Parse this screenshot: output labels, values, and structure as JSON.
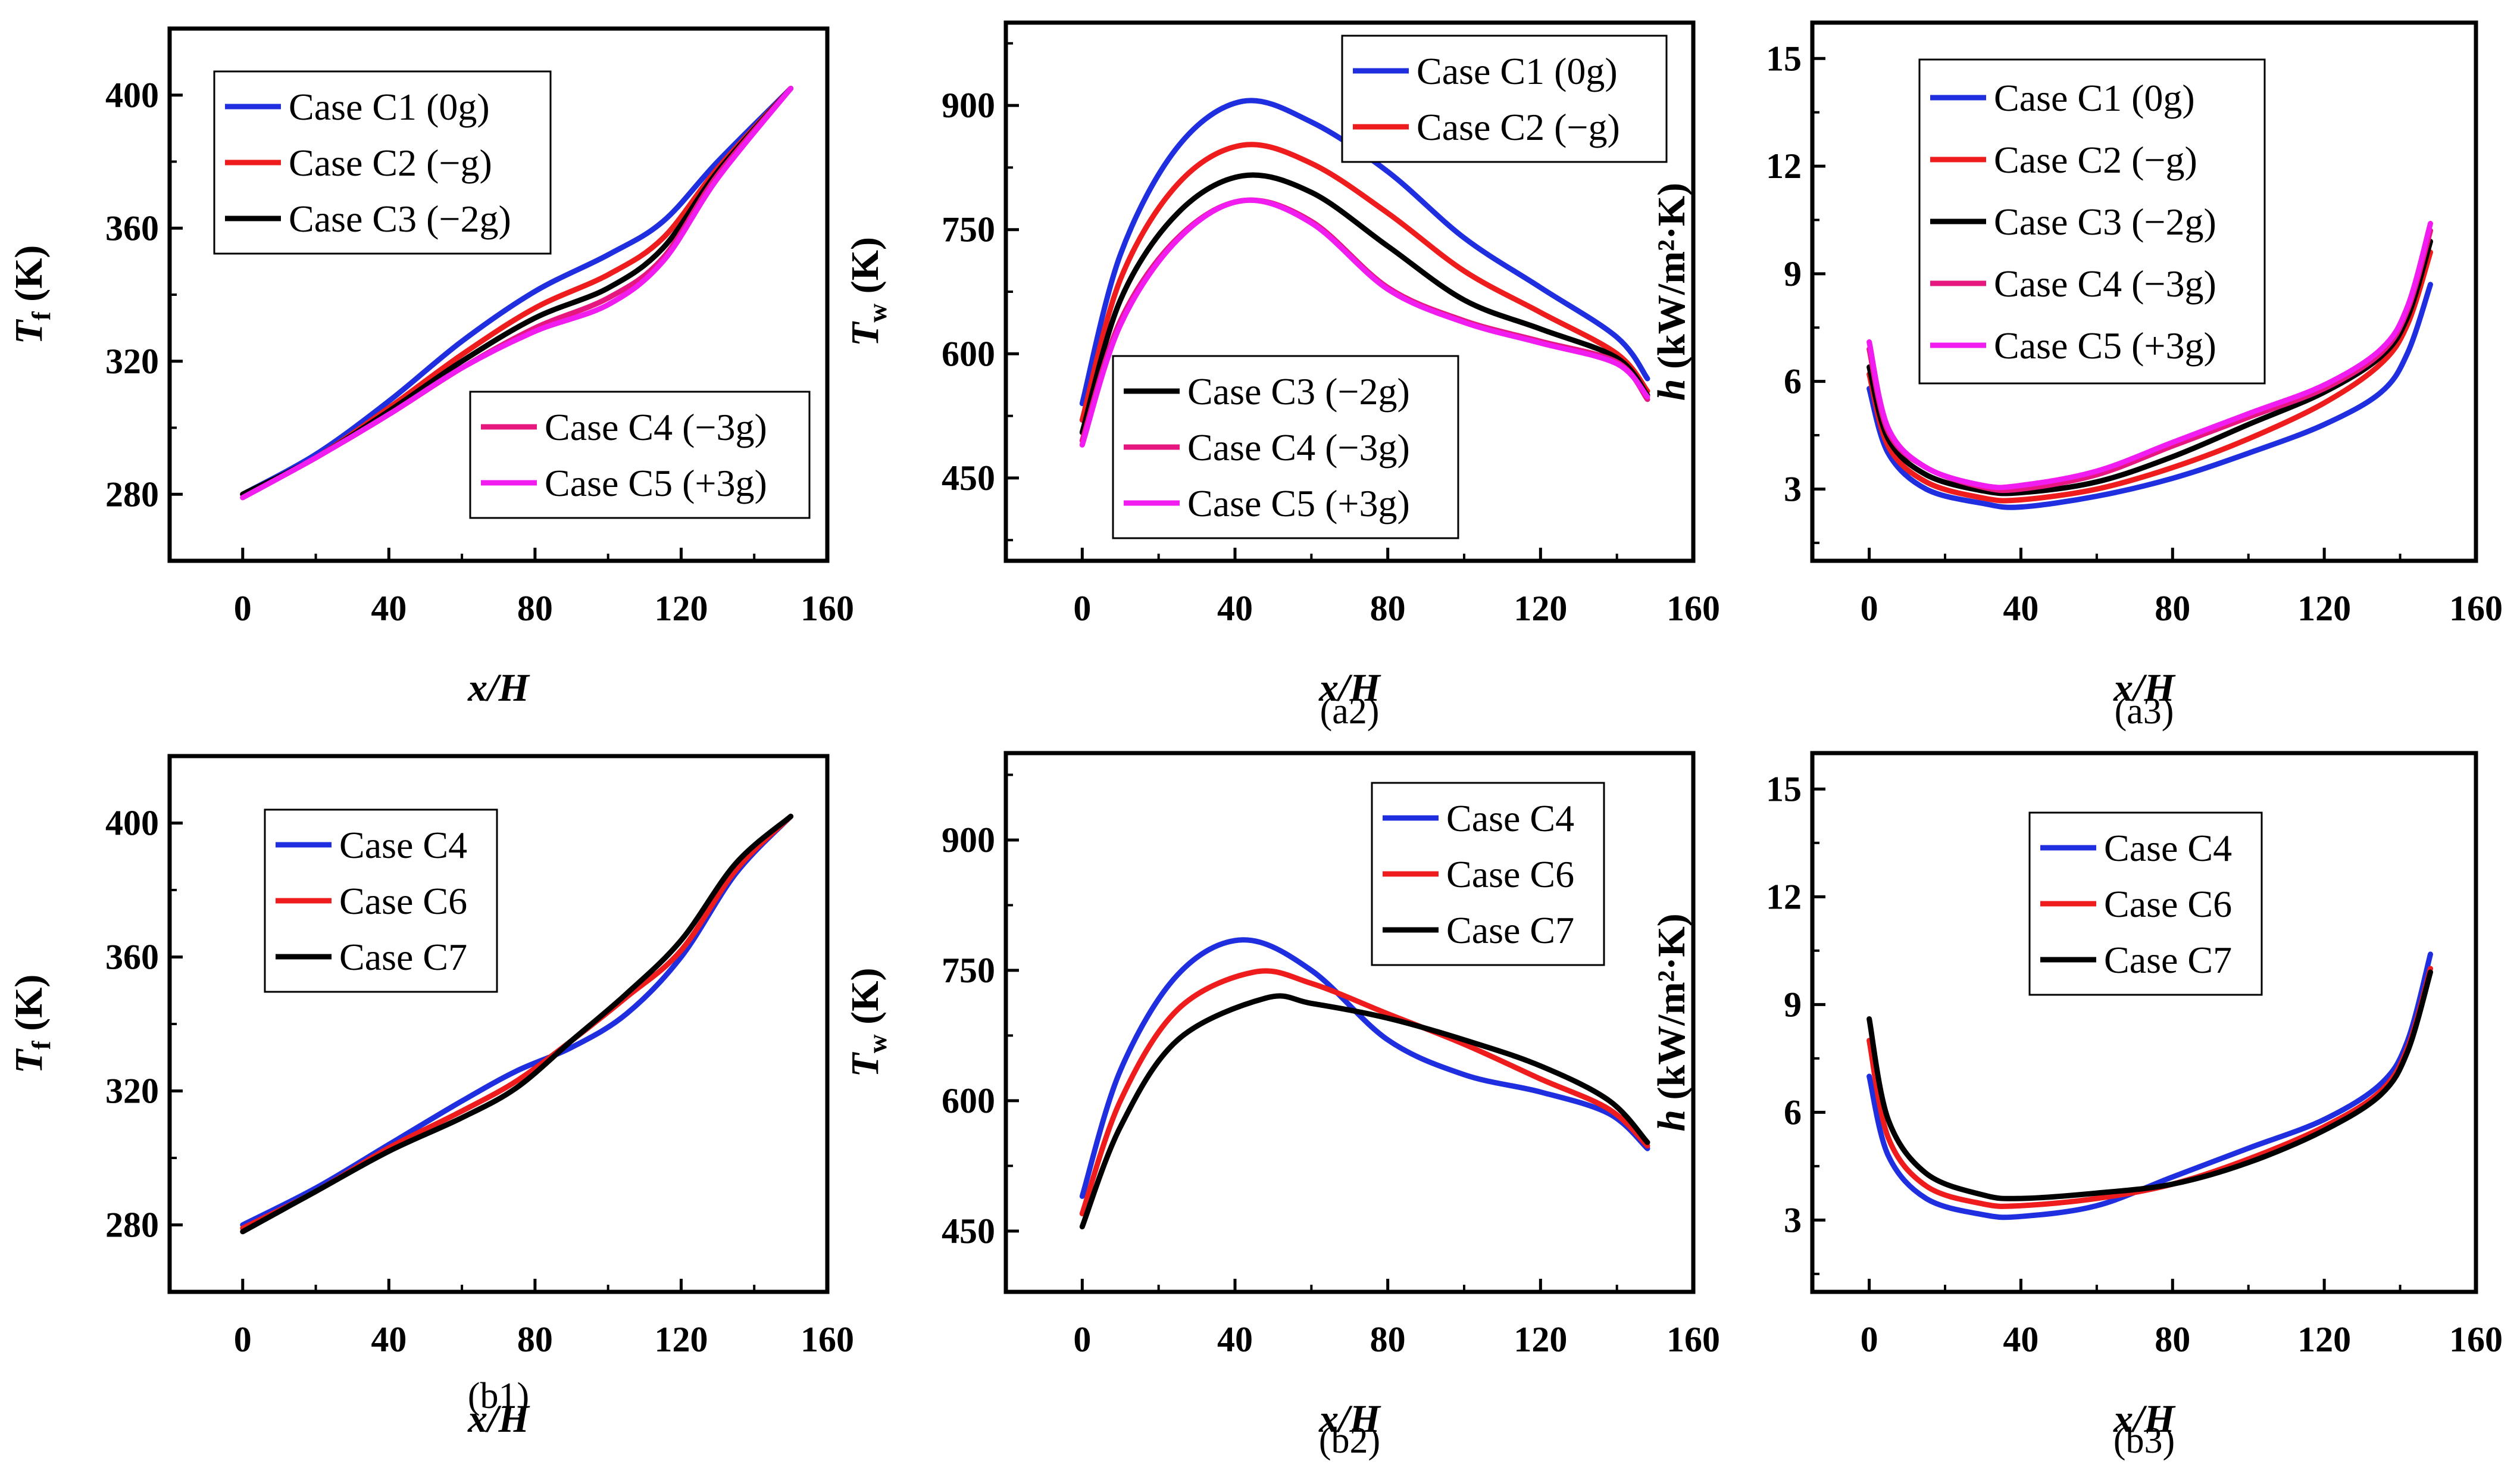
{
  "colors": {
    "C1": "#1f2fe0",
    "C2": "#ee1c1c",
    "C3": "#000000",
    "C4": "#e6177e",
    "C5": "#f01cf0",
    "b_C4": "#1f2fe0",
    "b_C6": "#ee1c1c",
    "b_C7": "#000000"
  },
  "chart_data": [
    {
      "id": "a1",
      "type": "line",
      "panel_label": "",
      "xlabel": "x/H",
      "ylabel_main": "T",
      "ylabel_sub": "f",
      "ylabel_unit": "(K)",
      "xlim": [
        -20,
        160
      ],
      "ylim": [
        260,
        420
      ],
      "xticks": [
        "0",
        "40",
        "80",
        "120",
        "160"
      ],
      "yticks": [
        "280",
        "320",
        "360",
        "400"
      ],
      "xtick_values": [
        0,
        40,
        80,
        120,
        160
      ],
      "ytick_values": [
        280,
        320,
        360,
        400
      ],
      "legends": [
        {
          "position": "top-left",
          "entries": [
            {
              "label": "Case C1 (0g)",
              "color_key": "C1"
            },
            {
              "label": "Case C2 (−g)",
              "color_key": "C2"
            },
            {
              "label": "Case C3 (−2g)",
              "color_key": "C3"
            }
          ]
        },
        {
          "position": "bottom-right",
          "entries": [
            {
              "label": "Case C4 (−3g)",
              "color_key": "C4"
            },
            {
              "label": "Case C5 (+3g)",
              "color_key": "C5"
            }
          ]
        }
      ],
      "series": [
        {
          "name": "Case C1 (0g)",
          "color_key": "C1",
          "x": [
            0,
            20,
            40,
            60,
            80,
            100,
            115,
            130,
            150
          ],
          "y": [
            280,
            292,
            308,
            326,
            341,
            352,
            362,
            380,
            402
          ]
        },
        {
          "name": "Case C2 (−g)",
          "color_key": "C2",
          "x": [
            0,
            20,
            40,
            60,
            80,
            100,
            115,
            130,
            150
          ],
          "y": [
            280,
            291,
            306,
            322,
            336,
            346,
            357,
            378,
            402
          ]
        },
        {
          "name": "Case C3 (−2g)",
          "color_key": "C3",
          "x": [
            0,
            20,
            40,
            60,
            80,
            100,
            115,
            130,
            150
          ],
          "y": [
            280,
            291,
            305,
            320,
            333,
            342,
            354,
            377,
            402
          ]
        },
        {
          "name": "Case C4 (−3g)",
          "color_key": "C4",
          "x": [
            0,
            20,
            40,
            60,
            80,
            100,
            115,
            130,
            150
          ],
          "y": [
            279,
            291,
            304,
            318,
            330,
            339,
            351,
            376,
            402
          ]
        },
        {
          "name": "Case C5 (+3g)",
          "color_key": "C5",
          "x": [
            0,
            20,
            40,
            60,
            80,
            100,
            115,
            130,
            150
          ],
          "y": [
            279,
            291,
            304,
            318,
            329,
            337,
            350,
            375,
            402
          ]
        }
      ]
    },
    {
      "id": "a2",
      "type": "line",
      "panel_label": "(a2)",
      "xlabel": "x/H",
      "ylabel_main": "T",
      "ylabel_sub": "w",
      "ylabel_unit": "(K)",
      "xlim": [
        -20,
        160
      ],
      "ylim": [
        350,
        1000
      ],
      "xticks": [
        "0",
        "40",
        "80",
        "120",
        "160"
      ],
      "yticks": [
        "450",
        "600",
        "750",
        "900"
      ],
      "xtick_values": [
        0,
        40,
        80,
        120,
        160
      ],
      "ytick_values": [
        450,
        600,
        750,
        900
      ],
      "legends": [
        {
          "position": "top-right",
          "entries": [
            {
              "label": "Case C1 (0g)",
              "color_key": "C1"
            },
            {
              "label": "Case C2 (−g)",
              "color_key": "C2"
            }
          ]
        },
        {
          "position": "bottom-left",
          "entries": [
            {
              "label": "Case C3 (−2g)",
              "color_key": "C3"
            },
            {
              "label": "Case C4 (−3g)",
              "color_key": "C4"
            },
            {
              "label": "Case C5 (+3g)",
              "color_key": "C5"
            }
          ]
        }
      ],
      "series": [
        {
          "name": "Case C1 (0g)",
          "color_key": "C1",
          "x": [
            0,
            10,
            25,
            42,
            60,
            80,
            100,
            120,
            140,
            148
          ],
          "y": [
            540,
            720,
            850,
            905,
            880,
            820,
            740,
            680,
            620,
            570
          ]
        },
        {
          "name": "Case C2 (−g)",
          "color_key": "C2",
          "x": [
            0,
            10,
            25,
            42,
            60,
            80,
            100,
            120,
            140,
            148
          ],
          "y": [
            520,
            690,
            805,
            852,
            830,
            770,
            700,
            650,
            600,
            555
          ]
        },
        {
          "name": "Case C3 (−2g)",
          "color_key": "C3",
          "x": [
            0,
            10,
            25,
            42,
            60,
            80,
            100,
            120,
            140,
            148
          ],
          "y": [
            505,
            665,
            770,
            815,
            795,
            730,
            665,
            630,
            595,
            550
          ]
        },
        {
          "name": "Case C4 (−3g)",
          "color_key": "C4",
          "x": [
            0,
            10,
            25,
            42,
            60,
            80,
            100,
            120,
            140,
            148
          ],
          "y": [
            495,
            640,
            740,
            785,
            760,
            680,
            640,
            615,
            590,
            545
          ]
        },
        {
          "name": "Case C5 (+3g)",
          "color_key": "C5",
          "x": [
            0,
            10,
            25,
            42,
            60,
            80,
            100,
            120,
            140,
            148
          ],
          "y": [
            490,
            635,
            738,
            785,
            758,
            678,
            638,
            613,
            588,
            548
          ]
        }
      ]
    },
    {
      "id": "a3",
      "type": "line",
      "panel_label": "(a3)",
      "xlabel": "x/H",
      "ylabel_main": "h",
      "ylabel_sub": "",
      "ylabel_unit": "(kW/m²·K)",
      "xlim": [
        -15,
        160
      ],
      "ylim": [
        1,
        16
      ],
      "xticks": [
        "0",
        "40",
        "80",
        "120",
        "160"
      ],
      "yticks": [
        "3",
        "6",
        "9",
        "12",
        "15"
      ],
      "xtick_values": [
        0,
        40,
        80,
        120,
        160
      ],
      "ytick_values": [
        3,
        6,
        9,
        12,
        15
      ],
      "legends": [
        {
          "position": "top-center",
          "entries": [
            {
              "label": "Case C1 (0g)",
              "color_key": "C1"
            },
            {
              "label": "Case C2 (−g)",
              "color_key": "C2"
            },
            {
              "label": "Case C3 (−2g)",
              "color_key": "C3"
            },
            {
              "label": "Case C4 (−3g)",
              "color_key": "C4"
            },
            {
              "label": "Case C5 (+3g)",
              "color_key": "C5"
            }
          ]
        }
      ],
      "series": [
        {
          "name": "Case C1 (0g)",
          "color_key": "C1",
          "x": [
            0,
            5,
            15,
            30,
            40,
            60,
            80,
            100,
            120,
            135,
            142,
            148
          ],
          "y": [
            5.8,
            4.0,
            3.0,
            2.6,
            2.5,
            2.8,
            3.3,
            4.0,
            4.8,
            5.7,
            6.8,
            8.7
          ]
        },
        {
          "name": "Case C2 (−g)",
          "color_key": "C2",
          "x": [
            0,
            5,
            15,
            30,
            40,
            60,
            80,
            100,
            120,
            135,
            142,
            148
          ],
          "y": [
            6.2,
            4.2,
            3.2,
            2.75,
            2.7,
            3.0,
            3.6,
            4.4,
            5.4,
            6.5,
            7.6,
            9.6
          ]
        },
        {
          "name": "Case C3 (−2g)",
          "color_key": "C3",
          "x": [
            0,
            5,
            15,
            30,
            40,
            60,
            80,
            100,
            120,
            135,
            142,
            148
          ],
          "y": [
            6.4,
            4.4,
            3.4,
            2.95,
            2.9,
            3.2,
            3.9,
            4.8,
            5.7,
            6.7,
            7.8,
            9.9
          ]
        },
        {
          "name": "Case C4 (−3g)",
          "color_key": "C4",
          "x": [
            0,
            5,
            15,
            30,
            40,
            60,
            80,
            100,
            120,
            135,
            142,
            148
          ],
          "y": [
            6.9,
            4.6,
            3.6,
            3.05,
            3.0,
            3.4,
            4.2,
            5.0,
            5.8,
            6.8,
            8.0,
            10.2
          ]
        },
        {
          "name": "Case C5 (+3g)",
          "color_key": "C5",
          "x": [
            0,
            5,
            15,
            30,
            40,
            60,
            80,
            100,
            120,
            135,
            142,
            148
          ],
          "y": [
            7.1,
            4.7,
            3.6,
            3.1,
            3.1,
            3.5,
            4.3,
            5.1,
            5.9,
            6.9,
            8.1,
            10.4
          ]
        }
      ]
    },
    {
      "id": "b1",
      "type": "line",
      "panel_label": "(b1)",
      "xlabel": "x/H",
      "ylabel_main": "T",
      "ylabel_sub": "f",
      "ylabel_unit": "(K)",
      "xlim": [
        -20,
        160
      ],
      "ylim": [
        260,
        420
      ],
      "xticks": [
        "0",
        "40",
        "80",
        "120",
        "160"
      ],
      "yticks": [
        "280",
        "320",
        "360",
        "400"
      ],
      "xtick_values": [
        0,
        40,
        80,
        120,
        160
      ],
      "ytick_values": [
        280,
        320,
        360,
        400
      ],
      "legends": [
        {
          "position": "top-left",
          "entries": [
            {
              "label": "Case C4",
              "color_key": "b_C4"
            },
            {
              "label": "Case C6",
              "color_key": "b_C6"
            },
            {
              "label": "Case C7",
              "color_key": "b_C7"
            }
          ]
        }
      ],
      "series": [
        {
          "name": "Case C4",
          "color_key": "b_C4",
          "x": [
            0,
            20,
            40,
            60,
            75,
            90,
            105,
            120,
            135,
            150
          ],
          "y": [
            280,
            291,
            304,
            317,
            326,
            333,
            343,
            360,
            385,
            402
          ]
        },
        {
          "name": "Case C6",
          "color_key": "b_C6",
          "x": [
            0,
            20,
            40,
            60,
            75,
            90,
            105,
            120,
            135,
            150
          ],
          "y": [
            279,
            290,
            303,
            314,
            323,
            335,
            348,
            362,
            386,
            402
          ]
        },
        {
          "name": "Case C7",
          "color_key": "b_C7",
          "x": [
            0,
            20,
            40,
            60,
            75,
            90,
            105,
            120,
            135,
            150
          ],
          "y": [
            278,
            290,
            302,
            312,
            321,
            335,
            349,
            365,
            388,
            402
          ]
        }
      ]
    },
    {
      "id": "b2",
      "type": "line",
      "panel_label": "(b2)",
      "xlabel": "x/H",
      "ylabel_main": "T",
      "ylabel_sub": "w",
      "ylabel_unit": "(K)",
      "xlim": [
        -20,
        160
      ],
      "ylim": [
        380,
        1000
      ],
      "xticks": [
        "0",
        "40",
        "80",
        "120",
        "160"
      ],
      "yticks": [
        "450",
        "600",
        "750",
        "900"
      ],
      "xtick_values": [
        0,
        40,
        80,
        120,
        160
      ],
      "ytick_values": [
        450,
        600,
        750,
        900
      ],
      "legends": [
        {
          "position": "top-right",
          "entries": [
            {
              "label": "Case C4",
              "color_key": "b_C4"
            },
            {
              "label": "Case C6",
              "color_key": "b_C6"
            },
            {
              "label": "Case C7",
              "color_key": "b_C7"
            }
          ]
        }
      ],
      "series": [
        {
          "name": "Case C4",
          "color_key": "b_C4",
          "x": [
            0,
            10,
            25,
            42,
            60,
            80,
            100,
            120,
            138,
            148
          ],
          "y": [
            490,
            635,
            745,
            785,
            750,
            670,
            630,
            610,
            585,
            545
          ]
        },
        {
          "name": "Case C6",
          "color_key": "b_C6",
          "x": [
            0,
            10,
            25,
            45,
            60,
            80,
            100,
            120,
            138,
            148
          ],
          "y": [
            470,
            600,
            705,
            748,
            735,
            700,
            665,
            625,
            590,
            548
          ]
        },
        {
          "name": "Case C7",
          "color_key": "b_C7",
          "x": [
            0,
            10,
            25,
            48,
            60,
            80,
            100,
            120,
            138,
            148
          ],
          "y": [
            455,
            570,
            670,
            718,
            712,
            695,
            670,
            640,
            600,
            552
          ]
        }
      ]
    },
    {
      "id": "b3",
      "type": "line",
      "panel_label": "(b3)",
      "xlabel": "x/H",
      "ylabel_main": "h",
      "ylabel_sub": "",
      "ylabel_unit": "(kW/m²·K)",
      "xlim": [
        -15,
        160
      ],
      "ylim": [
        1,
        16
      ],
      "xticks": [
        "0",
        "40",
        "80",
        "120",
        "160"
      ],
      "yticks": [
        "3",
        "6",
        "9",
        "12",
        "15"
      ],
      "xtick_values": [
        0,
        40,
        80,
        120,
        160
      ],
      "ytick_values": [
        3,
        6,
        9,
        12,
        15
      ],
      "legends": [
        {
          "position": "top-center",
          "entries": [
            {
              "label": "Case C4",
              "color_key": "b_C4"
            },
            {
              "label": "Case C6",
              "color_key": "b_C6"
            },
            {
              "label": "Case C7",
              "color_key": "b_C7"
            }
          ]
        }
      ],
      "series": [
        {
          "name": "Case C4",
          "color_key": "b_C4",
          "x": [
            0,
            5,
            15,
            30,
            40,
            60,
            80,
            100,
            120,
            135,
            142,
            148
          ],
          "y": [
            7.0,
            4.8,
            3.6,
            3.15,
            3.1,
            3.4,
            4.2,
            5.0,
            5.8,
            6.8,
            8.0,
            10.4
          ]
        },
        {
          "name": "Case C6",
          "color_key": "b_C6",
          "x": [
            0,
            5,
            15,
            30,
            40,
            60,
            80,
            100,
            120,
            135,
            142,
            148
          ],
          "y": [
            8.0,
            5.3,
            3.95,
            3.45,
            3.4,
            3.6,
            4.0,
            4.7,
            5.6,
            6.6,
            7.8,
            10.0
          ]
        },
        {
          "name": "Case C7",
          "color_key": "b_C7",
          "x": [
            0,
            5,
            15,
            30,
            40,
            60,
            80,
            100,
            120,
            135,
            142,
            148
          ],
          "y": [
            8.6,
            5.8,
            4.3,
            3.7,
            3.6,
            3.75,
            4.0,
            4.6,
            5.5,
            6.5,
            7.7,
            9.9
          ]
        }
      ]
    }
  ]
}
